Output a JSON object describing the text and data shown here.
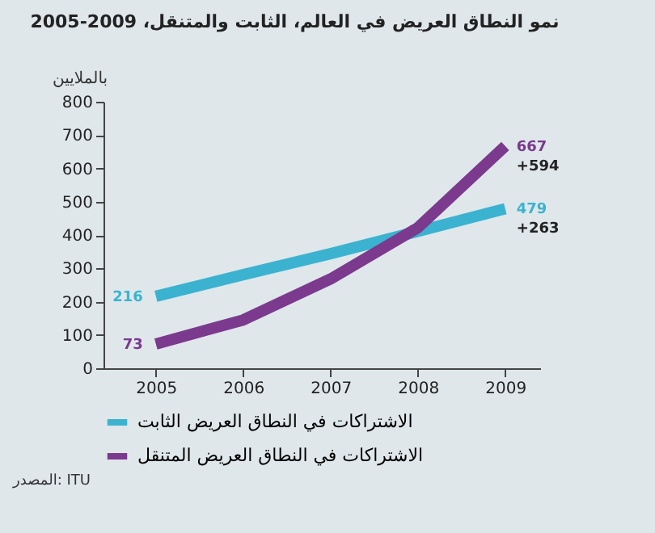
{
  "chart_data": {
    "type": "line",
    "title": "نمو النطاق العريض في العالم، الثابت والمتنقل، 2009-2005",
    "ylabel": "بالملايين",
    "categories": [
      "2005",
      "2006",
      "2007",
      "2008",
      "2009"
    ],
    "series": [
      {
        "name": "الاشتراكات في النطاق العريض الثابت",
        "color": "#3bb3d0",
        "values": [
          216,
          281,
          344,
          411,
          479
        ],
        "value_labels": [
          "216",
          null,
          null,
          null,
          "479"
        ]
      },
      {
        "name": "الاشتراكات في النطاق العريض المتنقل",
        "color": "#7b3a8e",
        "values": [
          73,
          145,
          268,
          422,
          667
        ],
        "value_labels": [
          "73",
          null,
          null,
          null,
          "667"
        ]
      }
    ],
    "annotations": [
      {
        "text": "+263",
        "x": "2009",
        "y": 479
      },
      {
        "text": "+594",
        "x": "2009",
        "y": 667
      },
      "المصدر: ITU"
    ],
    "ylim": [
      0,
      800
    ],
    "yticks": [
      0,
      100,
      200,
      300,
      400,
      500,
      600,
      700,
      800
    ],
    "grid": false,
    "legend": "bottom"
  }
}
